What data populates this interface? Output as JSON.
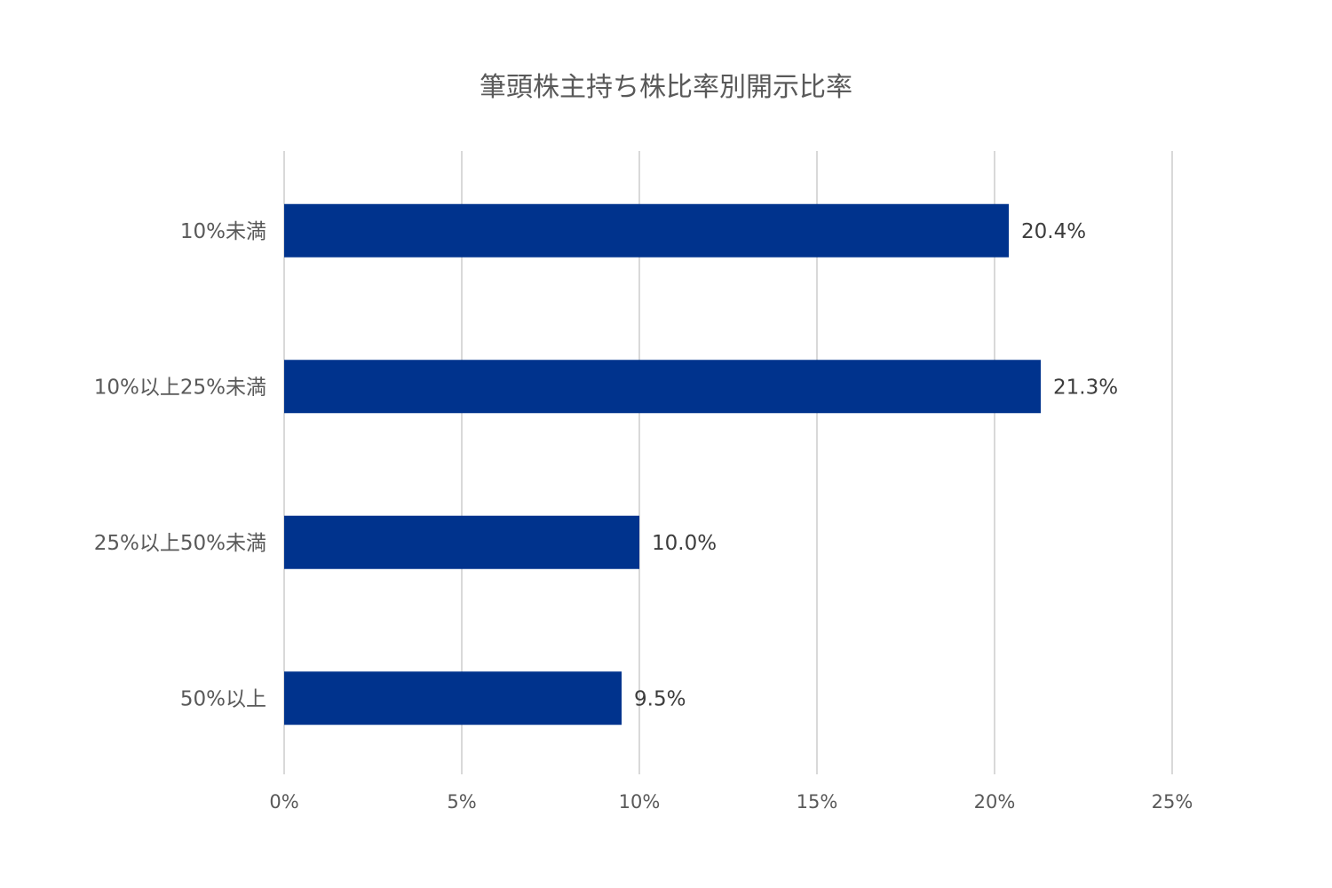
{
  "chart_data": {
    "type": "bar",
    "orientation": "horizontal",
    "title": "筆頭株主持ち株比率別開示比率",
    "categories": [
      "10%未満",
      "10%以上25%未満",
      "25%以上50%未満",
      "50%以上"
    ],
    "values": [
      20.4,
      21.3,
      10.0,
      9.5
    ],
    "data_labels": [
      "20.4%",
      "21.3%",
      "10.0%",
      "9.5%"
    ],
    "x_ticks": [
      0,
      5,
      10,
      15,
      20,
      25
    ],
    "x_tick_labels": [
      "0%",
      "5%",
      "10%",
      "15%",
      "20%",
      "25%"
    ],
    "xlim": [
      0,
      25
    ],
    "xlabel": "",
    "ylabel": "",
    "grid": "vertical",
    "legend": "none",
    "colors": {
      "bar": "#00338D",
      "grid": "#D9D9D9",
      "text": "#595959",
      "data_label": "#3C3C3C"
    }
  }
}
